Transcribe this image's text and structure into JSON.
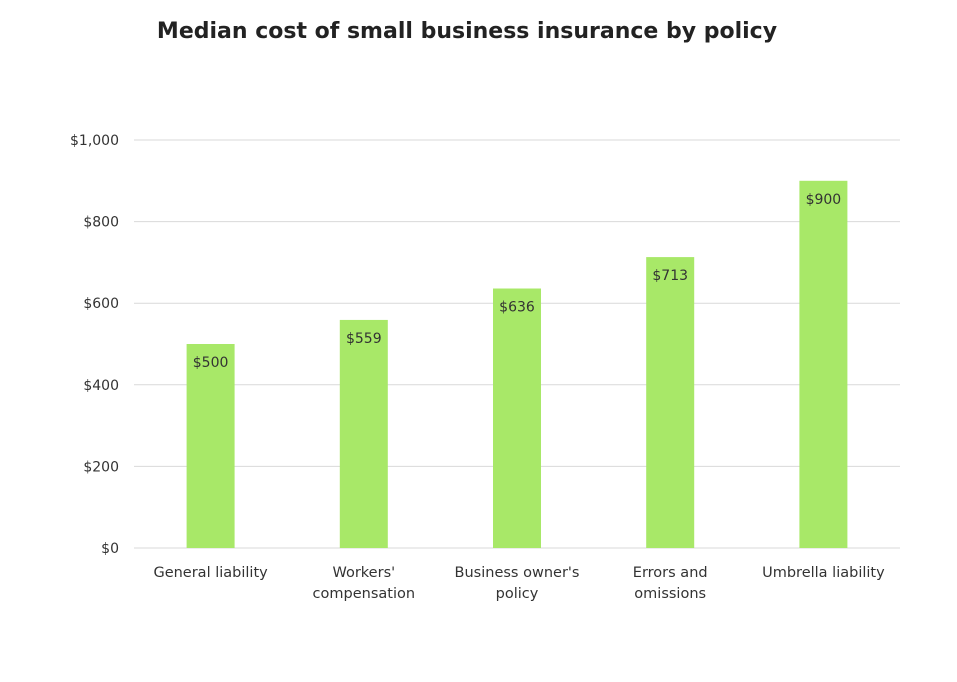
{
  "chart_data": {
    "type": "bar",
    "title": "Median cost of small business insurance by policy",
    "categories": [
      [
        "General liability"
      ],
      [
        "Workers'",
        "compensation"
      ],
      [
        "Business owner's",
        "policy"
      ],
      [
        "Errors and",
        "omissions"
      ],
      [
        "Umbrella liability"
      ]
    ],
    "values": [
      500,
      559,
      636,
      713,
      900
    ],
    "data_labels": [
      "$500",
      "$559",
      "$636",
      "$713",
      "$900"
    ],
    "yticks": [
      0,
      200,
      400,
      600,
      800,
      1000
    ],
    "ytick_labels": [
      "$0",
      "$200",
      "$400",
      "$600",
      "$800",
      "$1,000"
    ],
    "ylim": [
      0,
      1000
    ],
    "grid": true,
    "xlabel": "",
    "ylabel": "",
    "colors": {
      "bar": "#a8e868",
      "grid": "#d9d9d9"
    }
  }
}
